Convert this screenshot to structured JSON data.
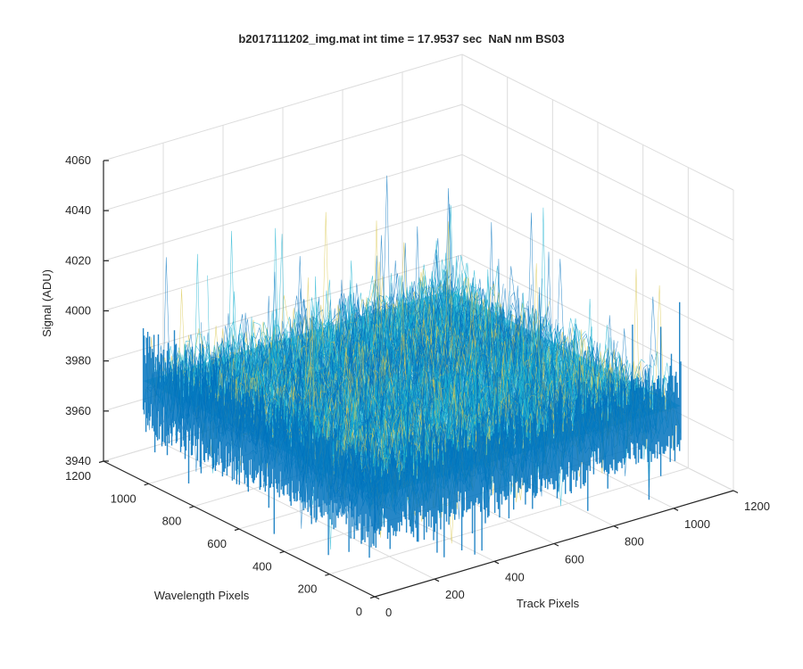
{
  "chart_data": {
    "type": "surface",
    "title": "b2017111202_img.mat int time = 17.9537 sec  NaN nm BS03",
    "xlabel": "Track Pixels",
    "ylabel": "Wavelength Pixels",
    "zlabel": "Signal (ADU)",
    "xlim": [
      0,
      1200
    ],
    "ylim": [
      0,
      1200
    ],
    "zlim": [
      3940,
      4060
    ],
    "x_ticks": [
      "0",
      "200",
      "400",
      "600",
      "800",
      "1000",
      "1200"
    ],
    "y_ticks": [
      "0",
      "200",
      "400",
      "600",
      "800",
      "1000",
      "1200"
    ],
    "z_ticks": [
      "3940",
      "3960",
      "3980",
      "4000",
      "4020",
      "4040",
      "4060"
    ],
    "surface": {
      "x_range": [
        0,
        1024
      ],
      "y_range": [
        0,
        1024
      ],
      "z_mean": 3980,
      "z_typical_range": [
        3965,
        3995
      ],
      "z_spike_range": [
        3945,
        4040
      ]
    },
    "grid": true,
    "colormap": "parula",
    "colors": {
      "low": "#0072bd",
      "mid": "#1ab2d0",
      "high": "#d9c74d"
    }
  }
}
